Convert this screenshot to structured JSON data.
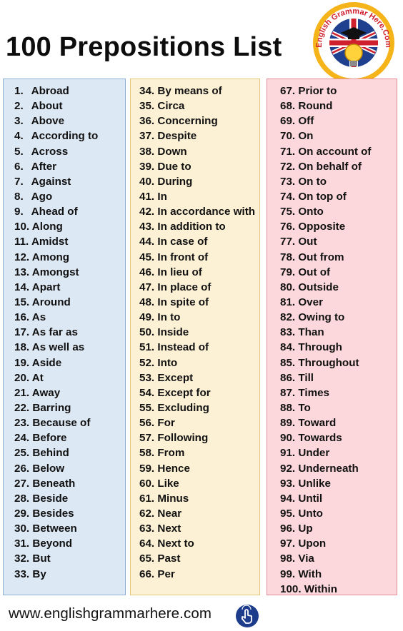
{
  "title": "100 Prepositions List",
  "logo": {
    "text": "English Grammar Here.Com"
  },
  "footer": {
    "url": "www.englishgrammarhere.com"
  },
  "colors": {
    "col1": "#dde8f5",
    "col2": "#fdf1d5",
    "col3": "#fcd8dc",
    "brand": "#1d3d8c"
  },
  "columns": [
    [
      [
        "1.",
        "Abroad"
      ],
      [
        "2.",
        "About"
      ],
      [
        "3.",
        "Above"
      ],
      [
        "4.",
        "According to"
      ],
      [
        "5.",
        "Across"
      ],
      [
        "6.",
        "After"
      ],
      [
        "7.",
        "Against"
      ],
      [
        "8.",
        "Ago"
      ],
      [
        "9.",
        "Ahead of"
      ],
      [
        "10.",
        "Along"
      ],
      [
        "11.",
        "Amidst"
      ],
      [
        "12.",
        "Among"
      ],
      [
        "13.",
        "Amongst"
      ],
      [
        "14.",
        "Apart"
      ],
      [
        "15.",
        "Around"
      ],
      [
        "16.",
        "As"
      ],
      [
        "17.",
        "As far as"
      ],
      [
        "18.",
        "As well as"
      ],
      [
        "19.",
        "Aside"
      ],
      [
        "20.",
        "At"
      ],
      [
        "21.",
        "Away"
      ],
      [
        "22.",
        "Barring"
      ],
      [
        "23.",
        "Because of"
      ],
      [
        "24.",
        "Before"
      ],
      [
        "25.",
        "Behind"
      ],
      [
        "26.",
        "Below"
      ],
      [
        "27.",
        "Beneath"
      ],
      [
        "28.",
        "Beside"
      ],
      [
        "29.",
        "Besides"
      ],
      [
        "30.",
        "Between"
      ],
      [
        "31.",
        "Beyond"
      ],
      [
        "32.",
        "But"
      ],
      [
        "33.",
        "By"
      ]
    ],
    [
      [
        "34.",
        "By means of"
      ],
      [
        "35.",
        "Circa"
      ],
      [
        "36.",
        "Concerning"
      ],
      [
        "37.",
        "Despite"
      ],
      [
        "38.",
        "Down"
      ],
      [
        "39.",
        "Due to"
      ],
      [
        "40.",
        "During"
      ],
      [
        "41.",
        "In"
      ],
      [
        "42.",
        "In accordance with"
      ],
      [
        "43.",
        "In addition to"
      ],
      [
        "44.",
        "In case of"
      ],
      [
        "45.",
        "In front of"
      ],
      [
        "46.",
        "In lieu of"
      ],
      [
        "47.",
        "In place of"
      ],
      [
        "48.",
        "In spite of"
      ],
      [
        "49.",
        "In to"
      ],
      [
        "50.",
        "Inside"
      ],
      [
        "51.",
        "Instead of"
      ],
      [
        "52.",
        "Into"
      ],
      [
        "53.",
        "Except"
      ],
      [
        "54.",
        "Except for"
      ],
      [
        "55.",
        "Excluding"
      ],
      [
        "56.",
        "For"
      ],
      [
        "57.",
        "Following"
      ],
      [
        "58.",
        "From"
      ],
      [
        "59.",
        "Hence"
      ],
      [
        "60.",
        "Like"
      ],
      [
        "61.",
        "Minus"
      ],
      [
        "62.",
        "Near"
      ],
      [
        "63.",
        "Next"
      ],
      [
        "64.",
        "Next to"
      ],
      [
        "65.",
        "Past"
      ],
      [
        "66.",
        "Per"
      ]
    ],
    [
      [
        "67.",
        "Prior to"
      ],
      [
        "68.",
        "Round"
      ],
      [
        "69.",
        "Off"
      ],
      [
        "70.",
        "On"
      ],
      [
        "71.",
        "On account of"
      ],
      [
        "72.",
        "On behalf of"
      ],
      [
        "73.",
        "On to"
      ],
      [
        "74.",
        "On top of"
      ],
      [
        "75.",
        "Onto"
      ],
      [
        "76.",
        "Opposite"
      ],
      [
        "77.",
        "Out"
      ],
      [
        "78.",
        "Out from"
      ],
      [
        "79.",
        "Out of"
      ],
      [
        "80.",
        "Outside"
      ],
      [
        "81.",
        "Over"
      ],
      [
        "82.",
        "Owing to"
      ],
      [
        "83.",
        "Than"
      ],
      [
        "84.",
        "Through"
      ],
      [
        "85.",
        "Throughout"
      ],
      [
        "86.",
        "Till"
      ],
      [
        "87.",
        "Times"
      ],
      [
        "88.",
        "To"
      ],
      [
        "89.",
        "Toward"
      ],
      [
        "90.",
        "Towards"
      ],
      [
        "91.",
        "Under"
      ],
      [
        "92.",
        "Underneath"
      ],
      [
        "93.",
        "Unlike"
      ],
      [
        "94.",
        "Until"
      ],
      [
        "95.",
        "Unto"
      ],
      [
        "96.",
        "Up"
      ],
      [
        "97.",
        "Upon"
      ],
      [
        "98.",
        "Via"
      ],
      [
        "99.",
        "With"
      ],
      [
        "100.",
        "Within"
      ]
    ]
  ]
}
